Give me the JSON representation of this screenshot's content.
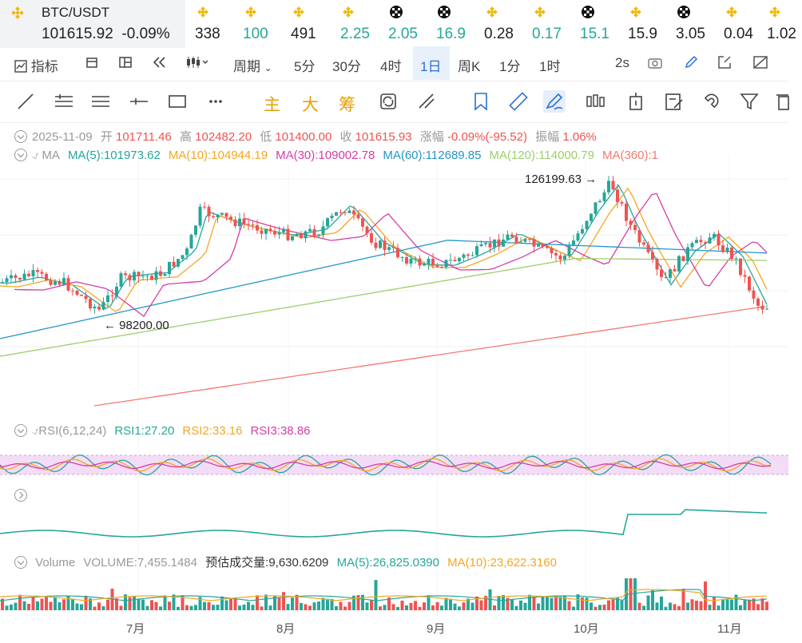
{
  "pair": {
    "symbol": "BTC/USDT",
    "price": "101615.92",
    "change": "-0.09%"
  },
  "tickers": [
    {
      "icon": "binance-icon",
      "value": "338",
      "color": "#222"
    },
    {
      "icon": "binance-icon",
      "value": "100",
      "color": "#26a69a"
    },
    {
      "icon": "binance-icon",
      "value": "491",
      "color": "#222"
    },
    {
      "icon": "binance-icon",
      "value": "2.25",
      "color": "#26a69a"
    },
    {
      "icon": "okx-icon",
      "value": "2.05",
      "color": "#26a69a"
    },
    {
      "icon": "okx-icon",
      "value": "16.9",
      "color": "#26a69a"
    },
    {
      "icon": "binance-icon",
      "value": "0.28",
      "color": "#222"
    },
    {
      "icon": "binance-icon",
      "value": "0.17",
      "color": "#26a69a"
    },
    {
      "icon": "okx-icon",
      "value": "15.1",
      "color": "#26a69a"
    },
    {
      "icon": "binance-icon",
      "value": "15.9",
      "color": "#222"
    },
    {
      "icon": "okx-icon",
      "value": "3.05",
      "color": "#222"
    },
    {
      "icon": "binance-icon",
      "value": "0.04",
      "color": "#222"
    },
    {
      "icon": "binance-icon",
      "value": "1.02",
      "color": "#222"
    }
  ],
  "toolbar": {
    "indicator": "指标",
    "period": "周期",
    "intervals": [
      "5分",
      "30分",
      "4时",
      "1日",
      "周K",
      "1分",
      "1时"
    ],
    "active_interval": "1日",
    "refresh": "2s"
  },
  "draw_tools": {
    "main": "主",
    "big": "大",
    "chip": "筹"
  },
  "ohlc": {
    "date": "2025-11-09",
    "open_label": "开",
    "open": "101711.46",
    "high_label": "高",
    "high": "102482.20",
    "low_label": "低",
    "low": "101400.00",
    "close_label": "收",
    "close": "101615.93",
    "chg_label": "涨幅",
    "chg": "-0.09%(-95.52)",
    "amp_label": "振幅",
    "amp": "1.06%"
  },
  "ma_legend": {
    "title": "MA",
    "items": [
      {
        "label": "MA(5):101973.62",
        "color": "#26a69a"
      },
      {
        "label": "MA(10):104944.19",
        "color": "#f5a623"
      },
      {
        "label": "MA(30):109002.78",
        "color": "#d63ca6"
      },
      {
        "label": "MA(60):112689.85",
        "color": "#2196c9"
      },
      {
        "label": "MA(120):114000.79",
        "color": "#9ccf6a"
      },
      {
        "label": "MA(360):1",
        "color": "#f47a72"
      }
    ]
  },
  "annotations": {
    "high": "126199.63",
    "low": "98200.00"
  },
  "rsi_legend": {
    "title": "RSI(6,12,24)",
    "items": [
      {
        "label": "RSI1:27.20",
        "color": "#26a69a"
      },
      {
        "label": "RSI2:33.16",
        "color": "#f5a623"
      },
      {
        "label": "RSI3:38.86",
        "color": "#d63ca6"
      }
    ]
  },
  "vol_legend": {
    "title": "Volume",
    "vol": "VOLUME:7,455.1484",
    "est": "预估成交量:9,630.6209",
    "ma5": "MA(5):26,825.0390",
    "ma10": "MA(10):23,622.3160"
  },
  "x_labels": [
    "7月",
    "8月",
    "9月",
    "10月",
    "11月"
  ],
  "colors": {
    "up": "#26a69a",
    "down": "#ef5350"
  }
}
